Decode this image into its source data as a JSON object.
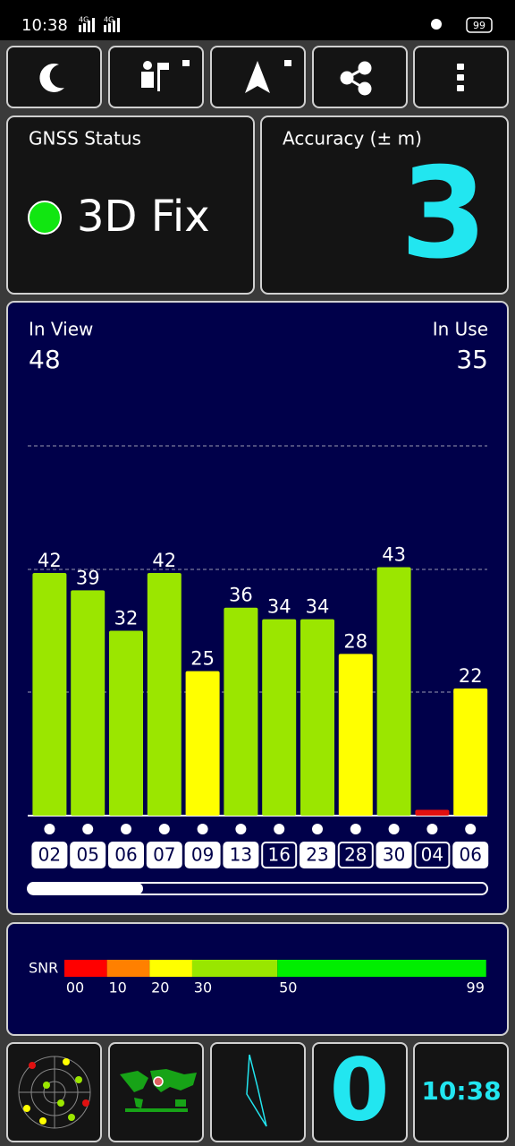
{
  "status_bar": {
    "time": "10:38",
    "network": [
      "4G",
      "4G"
    ],
    "battery": "99"
  },
  "gnss_status": {
    "label": "GNSS Status",
    "fix": "3D Fix"
  },
  "accuracy": {
    "label": "Accuracy (± m)",
    "value": "3"
  },
  "chart_data": {
    "type": "bar",
    "in_view_label": "In View",
    "in_view": 48,
    "in_use_label": "In Use",
    "in_use": 35,
    "categories": [
      "02",
      "05",
      "06",
      "07",
      "09",
      "13",
      "16",
      "23",
      "28",
      "30",
      "04",
      "06"
    ],
    "values": [
      42,
      39,
      32,
      42,
      25,
      36,
      34,
      34,
      28,
      43,
      1,
      22
    ],
    "value_labels": [
      "42",
      "39",
      "32",
      "42",
      "25",
      "36",
      "34",
      "34",
      "28",
      "43",
      null,
      "22"
    ],
    "colors": [
      "#9be600",
      "#9be600",
      "#9be600",
      "#9be600",
      "#ffff00",
      "#9be600",
      "#9be600",
      "#9be600",
      "#ffff00",
      "#9be600",
      "#e01010",
      "#ffff00"
    ],
    "used": [
      true,
      true,
      true,
      true,
      true,
      true,
      false,
      true,
      false,
      true,
      false,
      true
    ],
    "ylim": [
      0,
      64
    ]
  },
  "snr_legend": {
    "label": "SNR",
    "stops": [
      {
        "value": 0,
        "label": "00"
      },
      {
        "value": 10,
        "label": "10"
      },
      {
        "value": 20,
        "label": "20"
      },
      {
        "value": 30,
        "label": "30"
      },
      {
        "value": 50,
        "label": "50"
      },
      {
        "value": 99,
        "label": "99"
      }
    ],
    "colors": [
      "#ff0000",
      "#ff8000",
      "#ffff00",
      "#99e600",
      "#00ee00"
    ]
  },
  "bottom_bar": {
    "satellites": "0",
    "clock": "10:38"
  }
}
